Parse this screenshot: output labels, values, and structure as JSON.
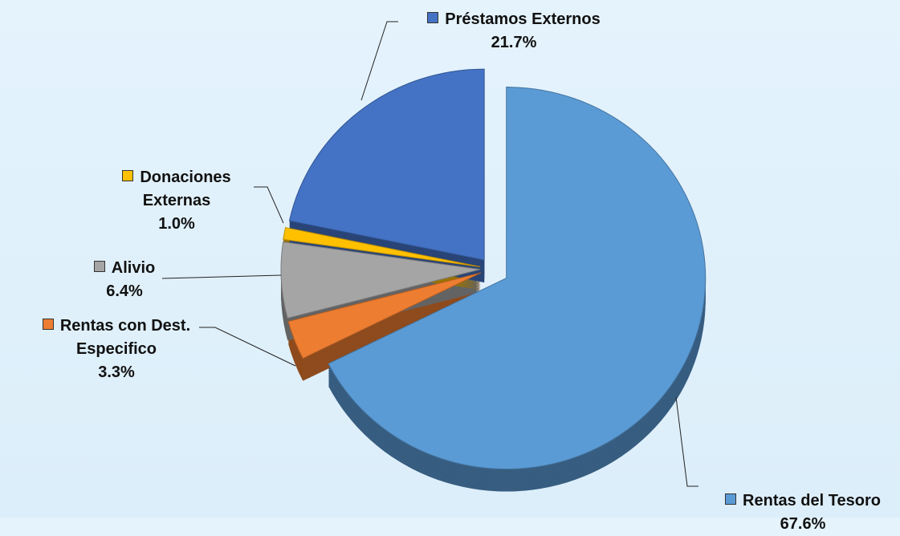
{
  "chart_data": {
    "type": "pie",
    "categories": [
      "Rentas del Tesoro",
      "Rentas con Dest. Especifico",
      "Alivio",
      "Donaciones Externas",
      "Préstamos Externos"
    ],
    "values": [
      67.6,
      3.3,
      6.4,
      1.0,
      21.7
    ],
    "value_labels": [
      "67.6%",
      "3.3%",
      "6.4%",
      "1.0%",
      "21.7%"
    ],
    "colors": [
      "#5b9bd5",
      "#ed7d31",
      "#a5a5a5",
      "#ffc000",
      "#4472c4"
    ]
  }
}
